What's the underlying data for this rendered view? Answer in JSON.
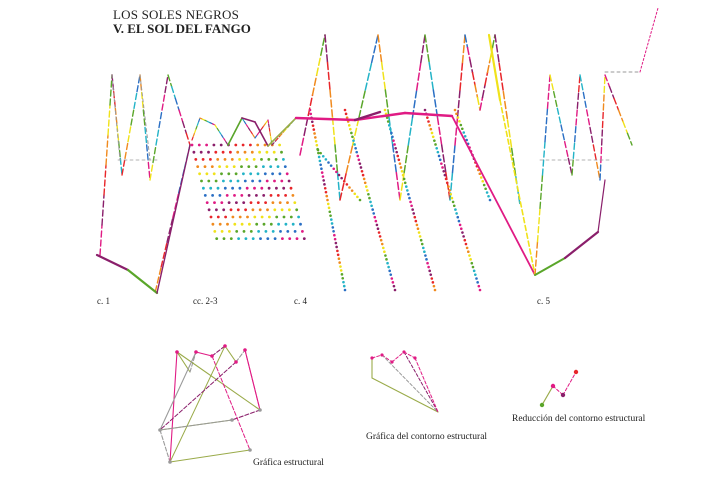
{
  "header": {
    "title": "LOS SOLES NEGROS",
    "subtitle": "V. EL SOL DEL FANGO"
  },
  "sections": {
    "c1": "c. 1",
    "c23": "cc. 2-3",
    "c4": "c. 4",
    "c5": "c. 5"
  },
  "captions": {
    "structural_graph": "Gráfica estructural",
    "contour_graph": "Gráfica del contorno estructural",
    "contour_reduction": "Reducción del contorno estructural"
  },
  "colors": {
    "magenta": "#e01b84",
    "purple": "#8a1f6b",
    "olive": "#9aab4a",
    "green": "#5aa62a",
    "yellow": "#f0e21a",
    "cyan": "#23b3c7",
    "grey": "#9a9a9a",
    "orange": "#f08a1e",
    "red": "#e8262a",
    "blue": "#2a6fc4"
  }
}
